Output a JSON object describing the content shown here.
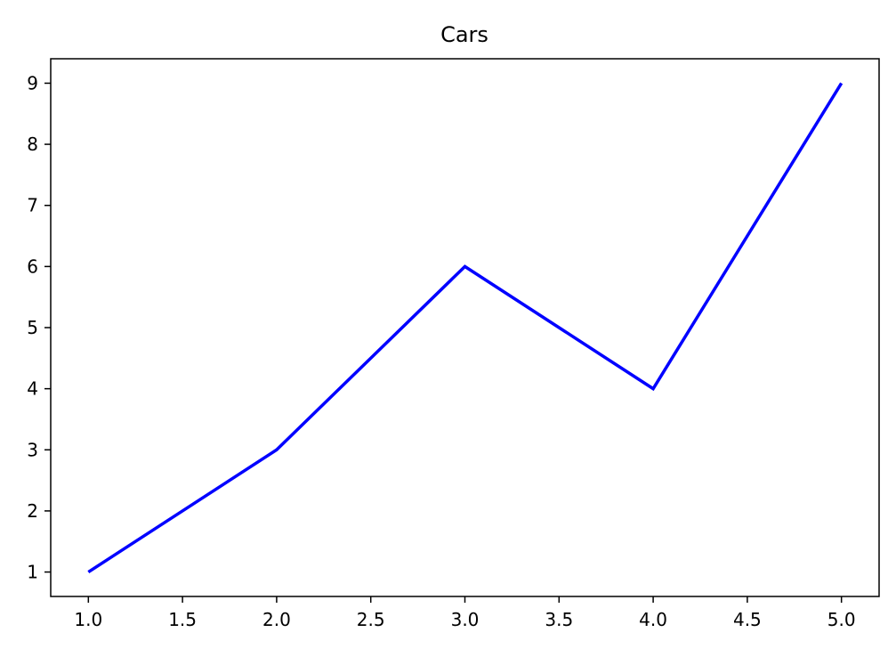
{
  "chart_data": {
    "type": "line",
    "title": "Cars",
    "xlabel": "",
    "ylabel": "",
    "x": [
      1,
      2,
      3,
      4,
      5
    ],
    "series": [
      {
        "values": [
          1,
          3,
          6,
          4,
          9
        ],
        "color": "#0000ff"
      }
    ],
    "xlim": [
      0.8,
      5.2
    ],
    "ylim": [
      0.6,
      9.4
    ],
    "x_ticks": [
      "1.0",
      "1.5",
      "2.0",
      "2.5",
      "3.0",
      "3.5",
      "4.0",
      "4.5",
      "5.0"
    ],
    "y_ticks": [
      "1",
      "2",
      "3",
      "4",
      "5",
      "6",
      "7",
      "8",
      "9"
    ],
    "grid": false,
    "legend": "none"
  }
}
